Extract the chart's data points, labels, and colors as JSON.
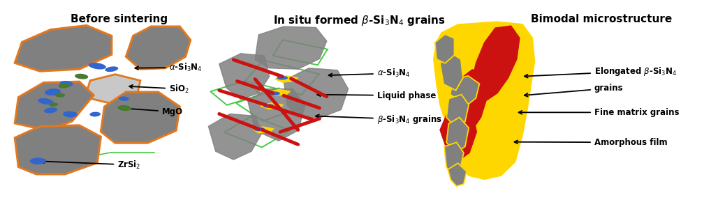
{
  "bg_color": "#ffffff",
  "title1": "Before sintering",
  "title2": "In situ formed β-Si₃N₄ grains",
  "title3": "Bimodal microstructure",
  "gray": "#808080",
  "orange": "#e07820",
  "light_gray": "#c8c8c8",
  "blue": "#3366cc",
  "green": "#4a7a30",
  "yellow": "#ffd700",
  "red": "#cc1111",
  "lime": "#44cc44"
}
